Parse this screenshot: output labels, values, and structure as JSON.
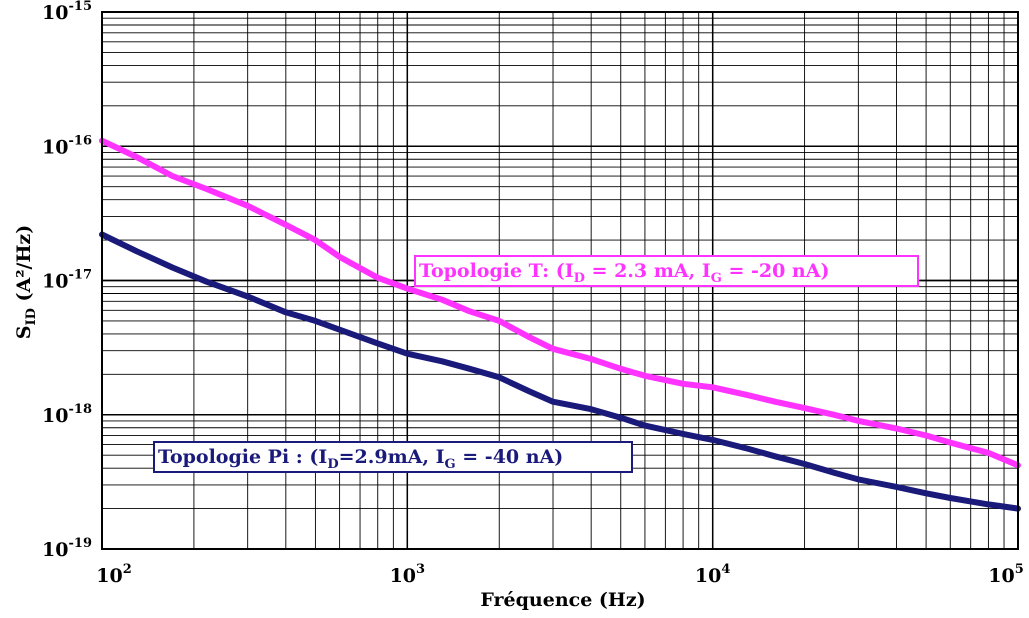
{
  "chart_data": {
    "type": "line",
    "xscale": "log",
    "yscale": "log",
    "xlim": [
      100,
      100000
    ],
    "ylim": [
      1e-19,
      1e-15
    ],
    "xlabel": "Fréquence (Hz)",
    "ylabel": {
      "main": "S",
      "sub": "ID",
      "units": " (A²/Hz)"
    },
    "grid": true,
    "x_ticks": [
      {
        "value": 100,
        "base": "10",
        "exp": "2"
      },
      {
        "value": 1000,
        "base": "10",
        "exp": "3"
      },
      {
        "value": 10000,
        "base": "10",
        "exp": "4"
      },
      {
        "value": 100000,
        "base": "10",
        "exp": "5"
      }
    ],
    "y_ticks": [
      {
        "value": 1e-15,
        "base": "10",
        "exp": "-15"
      },
      {
        "value": 1e-16,
        "base": "10",
        "exp": "-16"
      },
      {
        "value": 1e-17,
        "base": "10",
        "exp": "-17"
      },
      {
        "value": 1e-18,
        "base": "10",
        "exp": "-18"
      },
      {
        "value": 1e-19,
        "base": "10",
        "exp": "-19"
      }
    ],
    "series": [
      {
        "color": "#ff33ff",
        "points": [
          [
            100,
            1.1e-16
          ],
          [
            130,
            8.3e-17
          ],
          [
            170,
            6e-17
          ],
          [
            220,
            4.8e-17
          ],
          [
            300,
            3.6e-17
          ],
          [
            400,
            2.6e-17
          ],
          [
            500,
            2e-17
          ],
          [
            600,
            1.5e-17
          ],
          [
            800,
            1.05e-17
          ],
          [
            1000,
            8.7e-18
          ],
          [
            1300,
            7.2e-18
          ],
          [
            1600,
            5.9e-18
          ],
          [
            2000,
            5e-18
          ],
          [
            2500,
            3.8e-18
          ],
          [
            3000,
            3.1e-18
          ],
          [
            4000,
            2.6e-18
          ],
          [
            5000,
            2.2e-18
          ],
          [
            6000,
            1.95e-18
          ],
          [
            8000,
            1.7e-18
          ],
          [
            10000,
            1.6e-18
          ],
          [
            13000,
            1.4e-18
          ],
          [
            16000,
            1.25e-18
          ],
          [
            20000,
            1.12e-18
          ],
          [
            25000,
            1e-18
          ],
          [
            30000,
            9e-19
          ],
          [
            40000,
            7.9e-19
          ],
          [
            50000,
            7e-19
          ],
          [
            60000,
            6.2e-19
          ],
          [
            80000,
            5.2e-19
          ],
          [
            100000,
            4.2e-19
          ]
        ],
        "legend": {
          "parts": [
            {
              "t": "Topologie T: (I"
            },
            {
              "t": "D",
              "sub": true
            },
            {
              "t": " = 2.3 mA, I"
            },
            {
              "t": "G",
              "sub": true
            },
            {
              "t": " = -20 nA)"
            }
          ]
        }
      },
      {
        "color": "#1a1a7a",
        "points": [
          [
            100,
            2.2e-17
          ],
          [
            130,
            1.65e-17
          ],
          [
            170,
            1.25e-17
          ],
          [
            220,
            9.8e-18
          ],
          [
            300,
            7.6e-18
          ],
          [
            400,
            5.8e-18
          ],
          [
            500,
            5e-18
          ],
          [
            600,
            4.3e-18
          ],
          [
            800,
            3.4e-18
          ],
          [
            1000,
            2.85e-18
          ],
          [
            1300,
            2.5e-18
          ],
          [
            1600,
            2.2e-18
          ],
          [
            2000,
            1.9e-18
          ],
          [
            2500,
            1.5e-18
          ],
          [
            3000,
            1.25e-18
          ],
          [
            4000,
            1.1e-18
          ],
          [
            5000,
            9.5e-19
          ],
          [
            6000,
            8.3e-19
          ],
          [
            8000,
            7.2e-19
          ],
          [
            10000,
            6.5e-19
          ],
          [
            13000,
            5.6e-19
          ],
          [
            16000,
            4.9e-19
          ],
          [
            20000,
            4.3e-19
          ],
          [
            25000,
            3.7e-19
          ],
          [
            30000,
            3.3e-19
          ],
          [
            40000,
            2.9e-19
          ],
          [
            50000,
            2.6e-19
          ],
          [
            60000,
            2.4e-19
          ],
          [
            80000,
            2.15e-19
          ],
          [
            100000,
            2e-19
          ]
        ],
        "legend": {
          "parts": [
            {
              "t": "Topologie Pi : (I"
            },
            {
              "t": "D",
              "sub": true
            },
            {
              "t": "=2.9mA, I"
            },
            {
              "t": "G",
              "sub": true
            },
            {
              "t": " = -40 nA)"
            }
          ]
        }
      }
    ]
  }
}
